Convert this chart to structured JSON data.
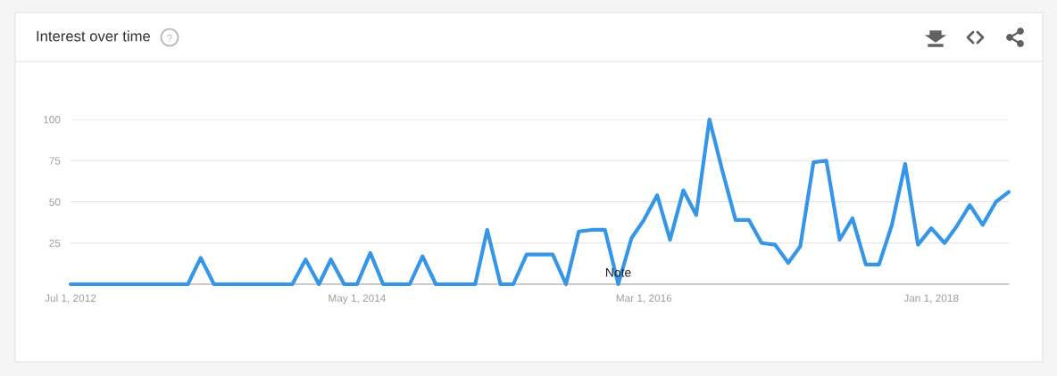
{
  "chart_data": {
    "type": "line",
    "title": "Interest over time",
    "x": [
      "2012-07",
      "2012-08",
      "2012-09",
      "2012-10",
      "2012-11",
      "2012-12",
      "2013-01",
      "2013-02",
      "2013-03",
      "2013-04",
      "2013-05",
      "2013-06",
      "2013-07",
      "2013-08",
      "2013-09",
      "2013-10",
      "2013-11",
      "2013-12",
      "2014-01",
      "2014-02",
      "2014-03",
      "2014-04",
      "2014-05",
      "2014-06",
      "2014-07",
      "2014-08",
      "2014-09",
      "2014-10",
      "2014-11",
      "2014-12",
      "2015-01",
      "2015-02",
      "2015-03",
      "2015-04",
      "2015-05",
      "2015-06",
      "2015-07",
      "2015-08",
      "2015-09",
      "2015-10",
      "2015-11",
      "2015-12",
      "2016-01",
      "2016-02",
      "2016-03",
      "2016-04",
      "2016-05",
      "2016-06",
      "2016-07",
      "2016-08",
      "2016-09",
      "2016-10",
      "2016-11",
      "2016-12",
      "2017-01",
      "2017-02",
      "2017-03",
      "2017-04",
      "2017-05",
      "2017-06",
      "2017-07",
      "2017-08",
      "2017-09",
      "2017-10",
      "2017-11",
      "2017-12",
      "2018-01",
      "2018-02",
      "2018-03",
      "2018-04",
      "2018-05",
      "2018-06",
      "2018-07"
    ],
    "series": [
      {
        "color": "#3596e8",
        "values": [
          0,
          0,
          0,
          0,
          0,
          0,
          0,
          0,
          0,
          0,
          16,
          0,
          0,
          0,
          0,
          0,
          0,
          0,
          15,
          0,
          15,
          0,
          0,
          19,
          0,
          0,
          0,
          17,
          0,
          0,
          0,
          0,
          33,
          0,
          0,
          18,
          18,
          18,
          0,
          32,
          33,
          33,
          0,
          28,
          39,
          54,
          27,
          57,
          42,
          100,
          68,
          39,
          39,
          25,
          24,
          13,
          23,
          74,
          75,
          27,
          40,
          12,
          12,
          36,
          73,
          24,
          34,
          25,
          35,
          48,
          36,
          50,
          56
        ]
      }
    ],
    "xlim": [
      "2012-07",
      "2018-07"
    ],
    "xticks": [
      {
        "value": "2012-07-01",
        "label": "Jul 1, 2012"
      },
      {
        "value": "2014-05-01",
        "label": "May 1, 2014"
      },
      {
        "value": "2016-03-01",
        "label": "Mar 1, 2016"
      },
      {
        "value": "2018-01-01",
        "label": "Jan 1, 2018"
      }
    ],
    "ylim": [
      0,
      100
    ],
    "yticks": [
      {
        "value": 0,
        "label": null
      },
      25,
      50,
      75,
      100
    ],
    "grid": "y",
    "marker": "none",
    "line_style": "solid",
    "annotations": [
      {
        "text": "Note",
        "x": "2016-01",
        "y": 0
      }
    ]
  }
}
